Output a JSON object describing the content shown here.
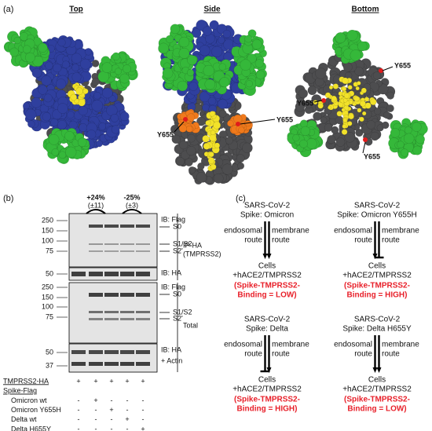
{
  "panel_a": {
    "label": "(a)",
    "top": {
      "title": "Top"
    },
    "side": {
      "title": "Side",
      "residues": [
        "Y655",
        "Y655"
      ]
    },
    "bottom": {
      "title": "Bottom",
      "residues": [
        "Y655",
        "Y655",
        "Y655"
      ]
    }
  },
  "panel_b": {
    "label": "(b)",
    "quantification": [
      {
        "change": "+24%",
        "error": "(±11)"
      },
      {
        "change": "-25%",
        "error": "(±3)"
      }
    ],
    "ip_flag_markers": [
      250,
      150,
      100,
      75
    ],
    "ip_ha_markers": [
      50
    ],
    "total_flag_markers": [
      250,
      150,
      100,
      75
    ],
    "total_ha_markers": [
      50,
      37
    ],
    "ip_flag_label": "IB: Flag",
    "ip_ha_label": "IB: HA",
    "ip_group": [
      "IP-HA",
      "(TMPRSS2)"
    ],
    "ip_bands": [
      "S0",
      "S1/S2",
      "S2'"
    ],
    "total_flag_label": "IB: Flag",
    "total_ha_label": [
      "IB: HA",
      "+ Actin"
    ],
    "total_group": "Total",
    "total_bands": [
      "S0",
      "S1/S2",
      "S2'"
    ],
    "table": [
      {
        "name": "TMPRSS2-HA",
        "cells": [
          "+",
          "+",
          "+",
          "+",
          "+"
        ]
      },
      {
        "name": "Spike-Flag"
      },
      {
        "name": "Omicron wt",
        "cells": [
          "-",
          "+",
          "-",
          "-",
          "-"
        ]
      },
      {
        "name": "Omicron Y655H",
        "cells": [
          "-",
          "-",
          "+",
          "-",
          "-"
        ]
      },
      {
        "name": "Delta wt",
        "cells": [
          "-",
          "-",
          "-",
          "+",
          "-"
        ]
      },
      {
        "name": "Delta H655Y",
        "cells": [
          "-",
          "-",
          "-",
          "-",
          "+"
        ]
      }
    ]
  },
  "panel_c": {
    "label": "(c)",
    "diagrams": [
      {
        "virus": "SARS-CoV-2",
        "spike": "Spike: Omicron",
        "left_route": [
          "endosomal",
          "route"
        ],
        "right_route": [
          "membrane",
          "route"
        ],
        "cells": "Cells",
        "receptor": "+hACE2/TMPRSS2",
        "binding": [
          "(Spike-TMPRSS2-",
          "Binding = LOW)"
        ]
      },
      {
        "virus": "SARS-CoV-2",
        "spike": "Spike: Omicron Y655H",
        "left_route": [
          "endosomal",
          "route"
        ],
        "right_route": [
          "membrane",
          "route"
        ],
        "cells": "Cells",
        "receptor": "+hACE2/TMPRSS2",
        "binding": [
          "(Spike-TMPRSS2-",
          "Binding = HIGH)"
        ]
      },
      {
        "virus": "SARS-CoV-2",
        "spike": "Spike: Delta",
        "left_route": [
          "endosomal",
          "route"
        ],
        "right_route": [
          "membrane",
          "route"
        ],
        "cells": "Cells",
        "receptor": "+hACE2/TMPRSS2",
        "binding": [
          "(Spike-TMPRSS2-",
          "Binding = HIGH)"
        ]
      },
      {
        "virus": "SARS-CoV-2",
        "spike": "Spike: Delta H655Y",
        "left_route": [
          "endosomal",
          "route"
        ],
        "right_route": [
          "membrane",
          "route"
        ],
        "cells": "Cells",
        "receptor": "+hACE2/TMPRSS2",
        "binding": [
          "(Spike-TMPRSS2-",
          "Binding = LOW)"
        ]
      }
    ]
  }
}
